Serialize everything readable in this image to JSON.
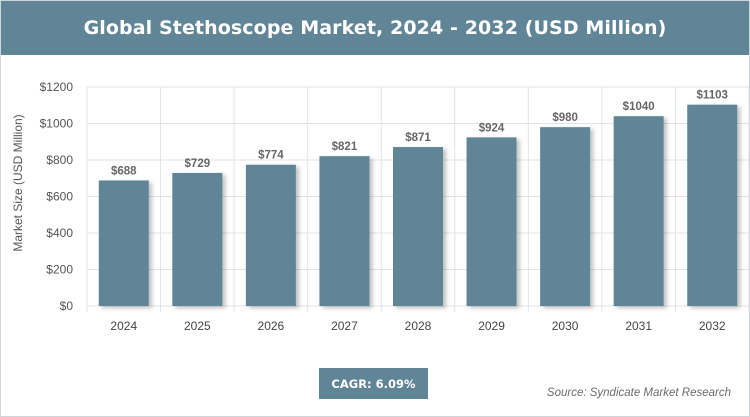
{
  "chart_data": {
    "type": "bar",
    "title": "Global Stethoscope Market, 2024 - 2032 (USD Million)",
    "categories": [
      "2024",
      "2025",
      "2026",
      "2027",
      "2028",
      "2029",
      "2030",
      "2031",
      "2032"
    ],
    "values": [
      688,
      729,
      774,
      821,
      871,
      924,
      980,
      1040,
      1103
    ],
    "value_labels": [
      "$688",
      "$729",
      "$774",
      "$821",
      "$871",
      "$924",
      "$980",
      "$1040",
      "$1103"
    ],
    "xlabel": "",
    "ylabel": "Market Size (USD Million)",
    "ylim": [
      0,
      1200
    ],
    "yticks": [
      0,
      200,
      400,
      600,
      800,
      1000,
      1200
    ],
    "ytick_labels": [
      "$0",
      "$200",
      "$400",
      "$600",
      "$800",
      "$1000",
      "$1200"
    ],
    "grid": true,
    "bar_color": "#5f8596"
  },
  "cagr_label": "CAGR: 6.09%",
  "source_label": "Source: Syndicate Market Research",
  "colors": {
    "accent": "#5f8596",
    "grid": "#e3e3e3",
    "axis_text": "#555555"
  }
}
